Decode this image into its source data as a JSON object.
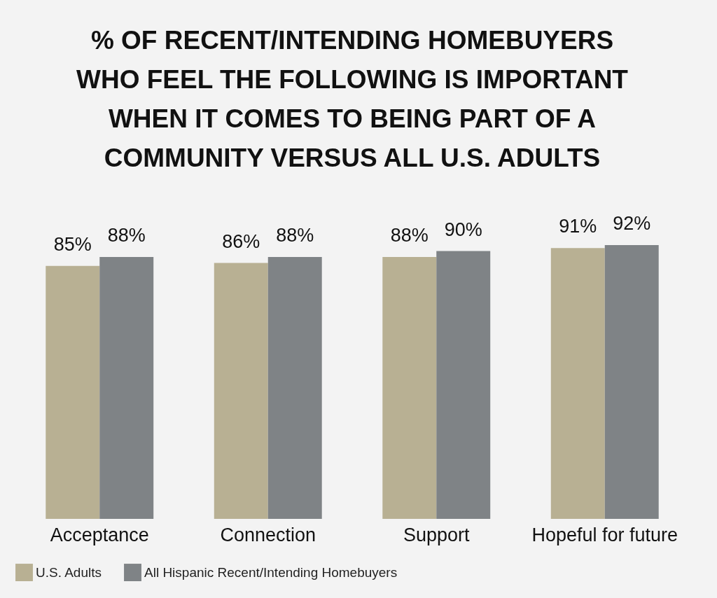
{
  "chart_data": {
    "type": "bar",
    "title": "% OF RECENT/INTENDING HOMEBUYERS WHO FEEL THE FOLLOWING IS IMPORTANT WHEN IT COMES TO BEING PART OF A COMMUNITY VERSUS ALL U.S. ADULTS",
    "categories": [
      "Acceptance",
      "Connection",
      "Support",
      "Hopeful for future"
    ],
    "series": [
      {
        "name": "U.S. Adults",
        "color": "#b8b093",
        "values": [
          85,
          86,
          88,
          91
        ],
        "value_labels": [
          "85%",
          "86%",
          "88%",
          "91%"
        ]
      },
      {
        "name": "All Hispanic Recent/Intending Homebuyers",
        "color": "#7f8386",
        "values": [
          88,
          88,
          90,
          92
        ],
        "value_labels": [
          "88%",
          "88%",
          "90%",
          "92%"
        ]
      }
    ],
    "tick_labels": "x",
    "legend": "bottom"
  }
}
